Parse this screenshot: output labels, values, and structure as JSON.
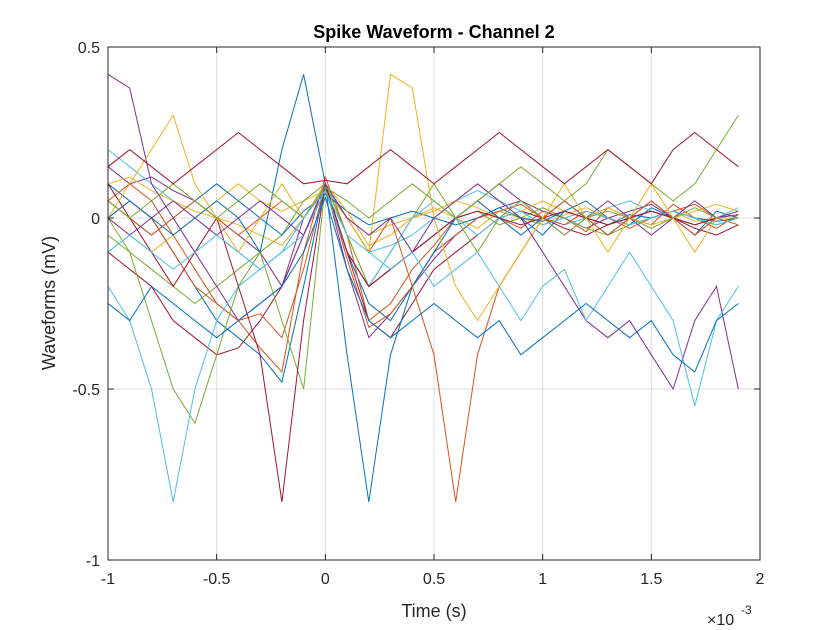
{
  "chart_data": {
    "type": "line",
    "title": "Spike Waveform - Channel 2",
    "xlabel": "Time (s)",
    "ylabel": "Waveforms (mV)",
    "x_exponent_label": "×10",
    "x_exponent_power": "-3",
    "xlim": [
      -0.001,
      0.002
    ],
    "ylim": [
      -1,
      0.5
    ],
    "grid": true,
    "xticks": [
      -0.001,
      -0.0005,
      0,
      0.0005,
      0.001,
      0.0015,
      0.002
    ],
    "xtick_labels": [
      "-1",
      "-0.5",
      "0",
      "0.5",
      "1",
      "1.5",
      "2"
    ],
    "yticks": [
      -1,
      -0.5,
      0,
      0.5
    ],
    "ytick_labels": [
      "-1",
      "-0.5",
      "0",
      "0.5"
    ],
    "x": [
      -0.001,
      -0.0009,
      -0.0008,
      -0.0007,
      -0.0006,
      -0.0005,
      -0.0004,
      -0.0003,
      -0.0002,
      -0.0001,
      0,
      0.0001,
      0.0002,
      0.0003,
      0.0004,
      0.0005,
      0.0006,
      0.0007,
      0.0008,
      0.0009,
      0.001,
      0.0011,
      0.0012,
      0.0013,
      0.0014,
      0.0015,
      0.0016,
      0.0017,
      0.0018,
      0.0019
    ],
    "series_colors": [
      "#0072BD",
      "#D95319",
      "#EDB120",
      "#7E2F8E",
      "#77AC30",
      "#4DBEEE",
      "#A2142F"
    ],
    "series": [
      {
        "values": [
          0.1,
          0.05,
          0.0,
          -0.1,
          -0.2,
          -0.3,
          -0.35,
          -0.4,
          -0.48,
          -0.2,
          0.1,
          -0.1,
          -0.25,
          -0.3,
          -0.2,
          -0.1,
          -0.05,
          0.0,
          0.02,
          0.0,
          -0.05,
          0.02,
          0.05,
          0.0,
          -0.02,
          0.03,
          0.0,
          -0.05,
          0.02,
          0.0
        ]
      },
      {
        "values": [
          0.05,
          0.1,
          0.05,
          -0.05,
          -0.15,
          -0.25,
          -0.3,
          -0.38,
          -0.45,
          -0.1,
          0.12,
          -0.05,
          -0.3,
          -0.25,
          -0.15,
          -0.08,
          0.0,
          0.05,
          0.0,
          -0.03,
          0.02,
          0.0,
          -0.04,
          0.03,
          0.0,
          -0.02,
          0.04,
          0.0,
          -0.03,
          0.01
        ]
      },
      {
        "values": [
          0.0,
          -0.05,
          -0.1,
          -0.05,
          0.0,
          0.05,
          0.1,
          0.05,
          0.02,
          0.05,
          0.08,
          0.0,
          -0.05,
          -0.02,
          0.0,
          0.03,
          0.0,
          -0.03,
          0.02,
          0.0,
          -0.02,
          0.01,
          0.03,
          0.0,
          -0.02,
          0.0,
          0.02,
          -0.01,
          0.0,
          0.02
        ]
      },
      {
        "values": [
          0.15,
          0.1,
          0.12,
          0.08,
          0.05,
          0.0,
          -0.05,
          -0.1,
          -0.2,
          0.0,
          0.1,
          -0.15,
          -0.35,
          -0.28,
          -0.2,
          -0.12,
          -0.05,
          0.0,
          0.03,
          0.05,
          0.02,
          0.0,
          -0.03,
          0.0,
          0.02,
          0.04,
          0.0,
          -0.02,
          0.0,
          0.01
        ]
      },
      {
        "values": [
          -0.05,
          -0.1,
          -0.15,
          -0.2,
          -0.25,
          -0.2,
          -0.15,
          -0.1,
          -0.05,
          0.05,
          0.1,
          -0.05,
          -0.2,
          -0.15,
          -0.1,
          -0.05,
          0.0,
          0.02,
          -0.02,
          0.0,
          0.03,
          0.0,
          -0.03,
          -0.05,
          -0.02,
          0.0,
          0.02,
          0.0,
          -0.02,
          0.0
        ]
      },
      {
        "values": [
          0.2,
          0.15,
          0.1,
          0.05,
          0.0,
          -0.05,
          -0.1,
          -0.15,
          -0.1,
          0.0,
          0.09,
          0.0,
          -0.1,
          -0.08,
          -0.05,
          0.0,
          0.05,
          0.08,
          0.05,
          0.02,
          0.0,
          -0.02,
          0.0,
          0.03,
          0.05,
          0.02,
          0.0,
          -0.02,
          0.0,
          0.03
        ]
      },
      {
        "values": [
          -0.1,
          -0.15,
          -0.2,
          -0.3,
          -0.35,
          -0.4,
          -0.38,
          -0.3,
          -0.2,
          -0.05,
          0.08,
          -0.1,
          -0.3,
          -0.35,
          -0.25,
          -0.15,
          -0.1,
          -0.05,
          0.0,
          0.02,
          0.0,
          -0.03,
          -0.05,
          -0.02,
          0.0,
          0.02,
          0.0,
          -0.03,
          -0.05,
          -0.02
        ]
      },
      {
        "values": [
          0.05,
          0.0,
          -0.05,
          0.0,
          0.05,
          0.1,
          0.05,
          0.0,
          -0.05,
          0.02,
          0.07,
          0.02,
          -0.02,
          0.0,
          0.02,
          0.0,
          -0.02,
          0.0,
          0.03,
          0.0,
          -0.01,
          0.02,
          0.0,
          -0.02,
          0.01,
          0.0,
          0.02,
          0.0,
          -0.01,
          0.0
        ]
      },
      {
        "values": [
          0.0,
          0.05,
          0.0,
          -0.1,
          -0.2,
          -0.25,
          -0.3,
          -0.28,
          -0.35,
          -0.15,
          0.1,
          -0.12,
          -0.32,
          -0.28,
          -0.2,
          -0.1,
          -0.05,
          0.0,
          0.02,
          0.04,
          0.0,
          -0.02,
          0.02,
          0.0,
          -0.03,
          0.0,
          0.02,
          0.04,
          0.0,
          -0.02
        ]
      },
      {
        "values": [
          0.1,
          0.12,
          0.08,
          0.05,
          0.02,
          0.0,
          -0.02,
          -0.05,
          -0.08,
          0.0,
          0.1,
          0.02,
          -0.08,
          -0.05,
          0.0,
          0.02,
          0.05,
          0.03,
          0.0,
          0.02,
          0.05,
          0.02,
          0.0,
          0.03,
          0.0,
          -0.02,
          0.0,
          0.02,
          0.04,
          0.02
        ]
      },
      {
        "values": [
          0.42,
          0.38,
          0.1,
          0.0,
          -0.1,
          -0.2,
          -0.3,
          -0.25,
          -0.2,
          -0.05,
          0.1,
          -0.1,
          -0.2,
          -0.15,
          -0.1,
          -0.05,
          0.0,
          0.05,
          0.1,
          0.05,
          0.0,
          -0.05,
          0.0,
          0.05,
          0.0,
          -0.05,
          0.0,
          0.05,
          0.0,
          0.02
        ]
      },
      {
        "values": [
          0.0,
          -0.1,
          -0.3,
          -0.5,
          -0.6,
          -0.4,
          -0.2,
          -0.1,
          -0.3,
          -0.5,
          0.1,
          -0.05,
          -0.2,
          -0.1,
          0.0,
          0.1,
          0.0,
          -0.1,
          0.0,
          0.05,
          0.0,
          -0.05,
          0.0,
          0.02,
          0.0,
          -0.03,
          0.0,
          0.03,
          0.0,
          0.0
        ]
      },
      {
        "values": [
          -0.2,
          -0.3,
          -0.5,
          -0.83,
          -0.5,
          -0.3,
          -0.2,
          -0.15,
          -0.1,
          -0.05,
          0.08,
          -0.1,
          -0.2,
          -0.1,
          0.0,
          0.05,
          0.0,
          -0.05,
          0.0,
          0.02,
          -0.02,
          0.0,
          0.02,
          0.0,
          -0.02,
          0.0,
          0.02,
          0.0,
          -0.02,
          0.0
        ]
      },
      {
        "values": [
          0.1,
          0.0,
          -0.1,
          -0.2,
          -0.1,
          0.0,
          -0.2,
          -0.4,
          -0.83,
          -0.3,
          0.1,
          -0.1,
          -0.2,
          -0.15,
          -0.1,
          -0.05,
          0.0,
          0.02,
          0.0,
          -0.02,
          0.0,
          0.02,
          0.0,
          -0.02,
          0.0,
          0.02,
          0.0,
          -0.02,
          0.0,
          0.0
        ]
      },
      {
        "values": [
          0.0,
          0.05,
          0.0,
          -0.05,
          0.0,
          0.05,
          0.0,
          -0.1,
          0.2,
          0.42,
          0.1,
          -0.4,
          -0.83,
          -0.4,
          -0.2,
          -0.1,
          0.0,
          0.05,
          0.0,
          -0.05,
          0.0,
          0.05,
          0.0,
          -0.05,
          0.0,
          0.05,
          0.0,
          -0.05,
          0.0,
          0.0
        ]
      },
      {
        "values": [
          0.05,
          0.0,
          -0.05,
          0.0,
          0.05,
          0.0,
          -0.05,
          0.0,
          0.05,
          0.0,
          0.1,
          0.0,
          -0.1,
          0.0,
          -0.2,
          -0.4,
          -0.83,
          -0.4,
          -0.2,
          -0.1,
          0.0,
          0.05,
          0.0,
          -0.05,
          0.0,
          0.05,
          0.0,
          -0.05,
          0.0,
          0.0
        ]
      },
      {
        "values": [
          0.0,
          0.1,
          0.2,
          0.3,
          0.1,
          0.0,
          -0.1,
          0.0,
          0.1,
          0.0,
          0.1,
          0.0,
          -0.1,
          0.42,
          0.38,
          0.0,
          -0.2,
          -0.3,
          -0.2,
          -0.1,
          0.0,
          0.1,
          0.0,
          -0.1,
          0.0,
          0.1,
          0.0,
          -0.1,
          0.0,
          0.0
        ]
      },
      {
        "values": [
          0.0,
          -0.05,
          0.0,
          0.05,
          0.0,
          -0.05,
          0.0,
          0.05,
          0.0,
          -0.05,
          0.1,
          0.0,
          -0.05,
          0.0,
          -0.1,
          0.0,
          0.05,
          0.1,
          0.05,
          0.0,
          -0.1,
          -0.2,
          -0.3,
          -0.35,
          -0.3,
          -0.4,
          -0.5,
          -0.3,
          -0.2,
          -0.5
        ]
      },
      {
        "values": [
          0.05,
          0.0,
          0.05,
          0.1,
          0.05,
          0.0,
          0.05,
          0.1,
          0.05,
          0.0,
          0.09,
          0.05,
          0.0,
          0.05,
          0.1,
          0.05,
          0.0,
          0.05,
          0.1,
          0.15,
          0.1,
          0.05,
          0.1,
          0.2,
          0.15,
          0.1,
          0.05,
          0.1,
          0.2,
          0.3
        ]
      },
      {
        "values": [
          -0.1,
          -0.05,
          -0.1,
          -0.15,
          -0.1,
          -0.05,
          -0.1,
          -0.15,
          -0.1,
          0.0,
          0.08,
          -0.05,
          -0.1,
          -0.15,
          -0.1,
          -0.2,
          -0.15,
          -0.1,
          -0.2,
          -0.3,
          -0.2,
          -0.15,
          -0.3,
          -0.2,
          -0.1,
          -0.2,
          -0.3,
          -0.55,
          -0.3,
          -0.2
        ]
      },
      {
        "values": [
          0.15,
          0.2,
          0.15,
          0.1,
          0.15,
          0.2,
          0.25,
          0.2,
          0.15,
          0.1,
          0.11,
          0.1,
          0.15,
          0.2,
          0.15,
          0.1,
          0.15,
          0.2,
          0.25,
          0.2,
          0.15,
          0.1,
          0.15,
          0.2,
          0.15,
          0.1,
          0.2,
          0.25,
          0.2,
          0.15
        ]
      },
      {
        "values": [
          -0.25,
          -0.3,
          -0.2,
          -0.25,
          -0.3,
          -0.35,
          -0.3,
          -0.25,
          -0.2,
          -0.1,
          0.06,
          -0.15,
          -0.3,
          -0.35,
          -0.3,
          -0.25,
          -0.3,
          -0.35,
          -0.3,
          -0.4,
          -0.35,
          -0.3,
          -0.25,
          -0.3,
          -0.35,
          -0.3,
          -0.4,
          -0.45,
          -0.3,
          -0.25
        ]
      }
    ]
  }
}
